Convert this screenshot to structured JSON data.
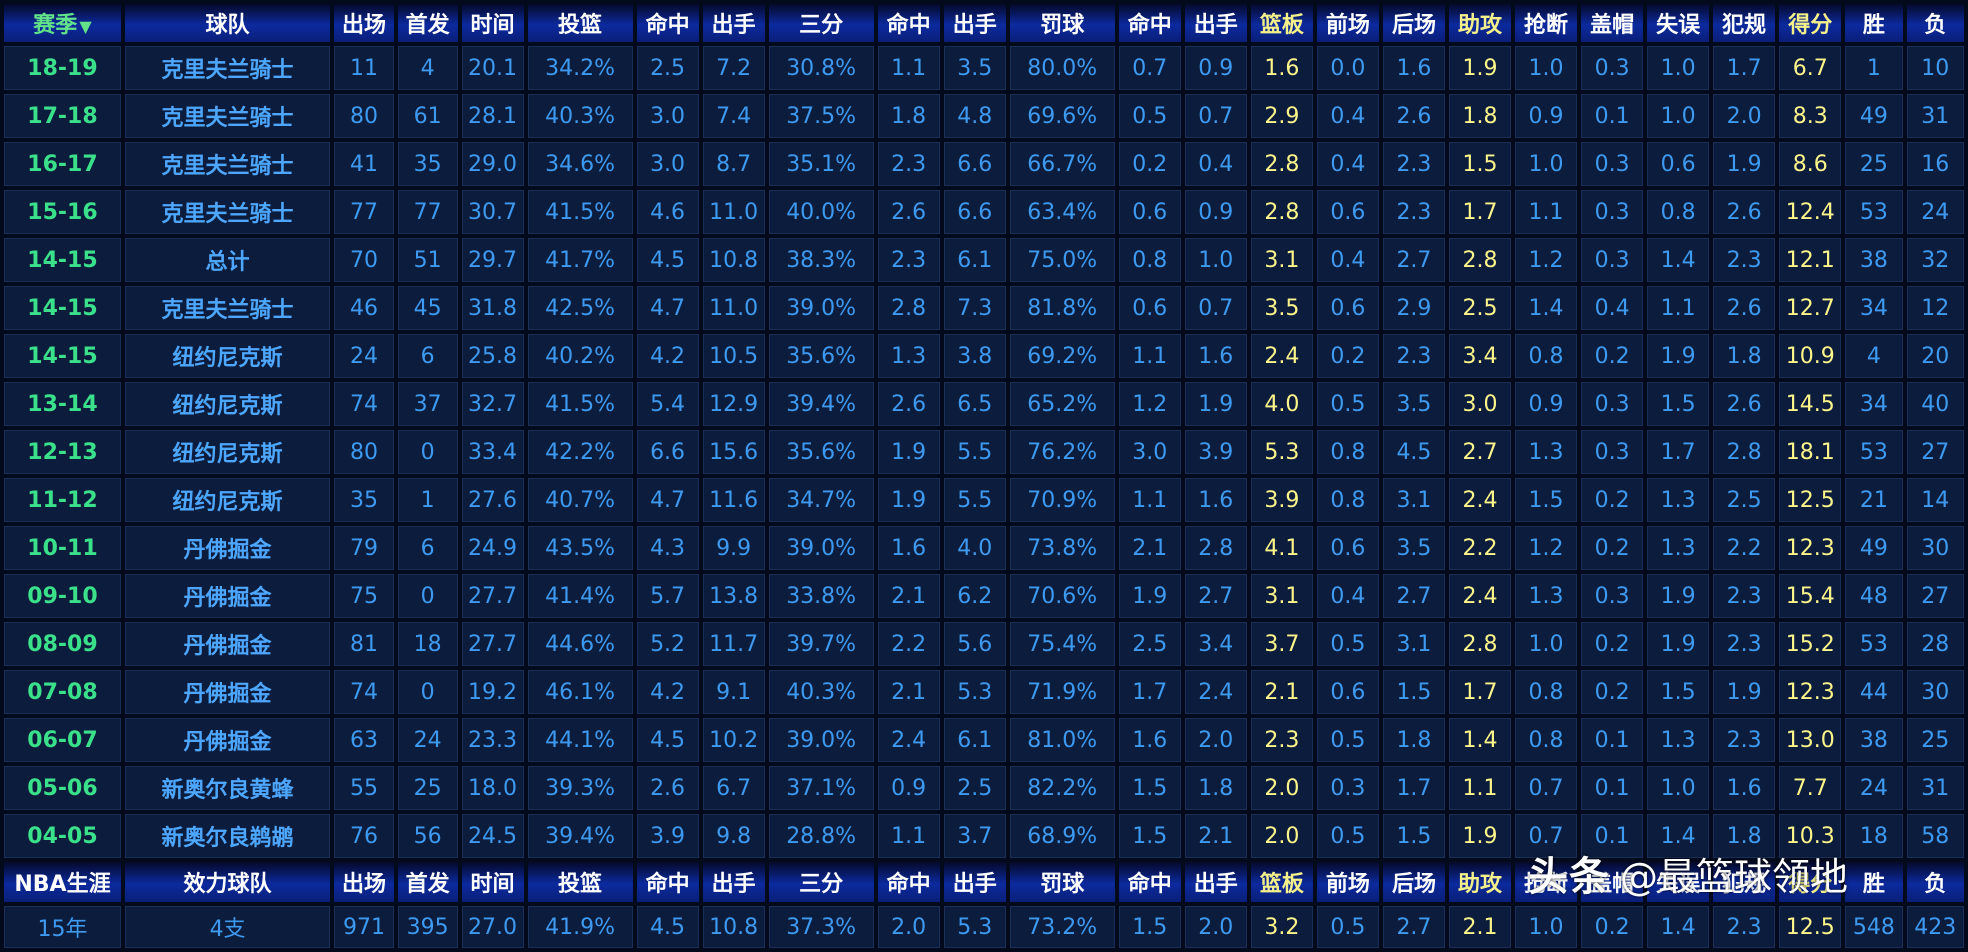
{
  "columns": [
    "赛季",
    "球队",
    "出场",
    "首发",
    "时间",
    "投篮",
    "命中",
    "出手",
    "三分",
    "命中",
    "出手",
    "罚球",
    "命中",
    "出手",
    "篮板",
    "前场",
    "后场",
    "助攻",
    "抢断",
    "盖帽",
    "失误",
    "犯规",
    "得分",
    "胜",
    "负"
  ],
  "sort_arrow": "▼",
  "rows": [
    [
      "18-19",
      "克里夫兰骑士",
      "11",
      "4",
      "20.1",
      "34.2%",
      "2.5",
      "7.2",
      "30.8%",
      "1.1",
      "3.5",
      "80.0%",
      "0.7",
      "0.9",
      "1.6",
      "0.0",
      "1.6",
      "1.9",
      "1.0",
      "0.3",
      "1.0",
      "1.7",
      "6.7",
      "1",
      "10"
    ],
    [
      "17-18",
      "克里夫兰骑士",
      "80",
      "61",
      "28.1",
      "40.3%",
      "3.0",
      "7.4",
      "37.5%",
      "1.8",
      "4.8",
      "69.6%",
      "0.5",
      "0.7",
      "2.9",
      "0.4",
      "2.6",
      "1.8",
      "0.9",
      "0.1",
      "1.0",
      "2.0",
      "8.3",
      "49",
      "31"
    ],
    [
      "16-17",
      "克里夫兰骑士",
      "41",
      "35",
      "29.0",
      "34.6%",
      "3.0",
      "8.7",
      "35.1%",
      "2.3",
      "6.6",
      "66.7%",
      "0.2",
      "0.4",
      "2.8",
      "0.4",
      "2.3",
      "1.5",
      "1.0",
      "0.3",
      "0.6",
      "1.9",
      "8.6",
      "25",
      "16"
    ],
    [
      "15-16",
      "克里夫兰骑士",
      "77",
      "77",
      "30.7",
      "41.5%",
      "4.6",
      "11.0",
      "40.0%",
      "2.6",
      "6.6",
      "63.4%",
      "0.6",
      "0.9",
      "2.8",
      "0.6",
      "2.3",
      "1.7",
      "1.1",
      "0.3",
      "0.8",
      "2.6",
      "12.4",
      "53",
      "24"
    ],
    [
      "14-15",
      "总计",
      "70",
      "51",
      "29.7",
      "41.7%",
      "4.5",
      "10.8",
      "38.3%",
      "2.3",
      "6.1",
      "75.0%",
      "0.8",
      "1.0",
      "3.1",
      "0.4",
      "2.7",
      "2.8",
      "1.2",
      "0.3",
      "1.4",
      "2.3",
      "12.1",
      "38",
      "32"
    ],
    [
      "14-15",
      "克里夫兰骑士",
      "46",
      "45",
      "31.8",
      "42.5%",
      "4.7",
      "11.0",
      "39.0%",
      "2.8",
      "7.3",
      "81.8%",
      "0.6",
      "0.7",
      "3.5",
      "0.6",
      "2.9",
      "2.5",
      "1.4",
      "0.4",
      "1.1",
      "2.6",
      "12.7",
      "34",
      "12"
    ],
    [
      "14-15",
      "纽约尼克斯",
      "24",
      "6",
      "25.8",
      "40.2%",
      "4.2",
      "10.5",
      "35.6%",
      "1.3",
      "3.8",
      "69.2%",
      "1.1",
      "1.6",
      "2.4",
      "0.2",
      "2.3",
      "3.4",
      "0.8",
      "0.2",
      "1.9",
      "1.8",
      "10.9",
      "4",
      "20"
    ],
    [
      "13-14",
      "纽约尼克斯",
      "74",
      "37",
      "32.7",
      "41.5%",
      "5.4",
      "12.9",
      "39.4%",
      "2.6",
      "6.5",
      "65.2%",
      "1.2",
      "1.9",
      "4.0",
      "0.5",
      "3.5",
      "3.0",
      "0.9",
      "0.3",
      "1.5",
      "2.6",
      "14.5",
      "34",
      "40"
    ],
    [
      "12-13",
      "纽约尼克斯",
      "80",
      "0",
      "33.4",
      "42.2%",
      "6.6",
      "15.6",
      "35.6%",
      "1.9",
      "5.5",
      "76.2%",
      "3.0",
      "3.9",
      "5.3",
      "0.8",
      "4.5",
      "2.7",
      "1.3",
      "0.3",
      "1.7",
      "2.8",
      "18.1",
      "53",
      "27"
    ],
    [
      "11-12",
      "纽约尼克斯",
      "35",
      "1",
      "27.6",
      "40.7%",
      "4.7",
      "11.6",
      "34.7%",
      "1.9",
      "5.5",
      "70.9%",
      "1.1",
      "1.6",
      "3.9",
      "0.8",
      "3.1",
      "2.4",
      "1.5",
      "0.2",
      "1.3",
      "2.5",
      "12.5",
      "21",
      "14"
    ],
    [
      "10-11",
      "丹佛掘金",
      "79",
      "6",
      "24.9",
      "43.5%",
      "4.3",
      "9.9",
      "39.0%",
      "1.6",
      "4.0",
      "73.8%",
      "2.1",
      "2.8",
      "4.1",
      "0.6",
      "3.5",
      "2.2",
      "1.2",
      "0.2",
      "1.3",
      "2.2",
      "12.3",
      "49",
      "30"
    ],
    [
      "09-10",
      "丹佛掘金",
      "75",
      "0",
      "27.7",
      "41.4%",
      "5.7",
      "13.8",
      "33.8%",
      "2.1",
      "6.2",
      "70.6%",
      "1.9",
      "2.7",
      "3.1",
      "0.4",
      "2.7",
      "2.4",
      "1.3",
      "0.3",
      "1.9",
      "2.3",
      "15.4",
      "48",
      "27"
    ],
    [
      "08-09",
      "丹佛掘金",
      "81",
      "18",
      "27.7",
      "44.6%",
      "5.2",
      "11.7",
      "39.7%",
      "2.2",
      "5.6",
      "75.4%",
      "2.5",
      "3.4",
      "3.7",
      "0.5",
      "3.1",
      "2.8",
      "1.0",
      "0.2",
      "1.9",
      "2.3",
      "15.2",
      "53",
      "28"
    ],
    [
      "07-08",
      "丹佛掘金",
      "74",
      "0",
      "19.2",
      "46.1%",
      "4.2",
      "9.1",
      "40.3%",
      "2.1",
      "5.3",
      "71.9%",
      "1.7",
      "2.4",
      "2.1",
      "0.6",
      "1.5",
      "1.7",
      "0.8",
      "0.2",
      "1.5",
      "1.9",
      "12.3",
      "44",
      "30"
    ],
    [
      "06-07",
      "丹佛掘金",
      "63",
      "24",
      "23.3",
      "44.1%",
      "4.5",
      "10.2",
      "39.0%",
      "2.4",
      "6.1",
      "81.0%",
      "1.6",
      "2.0",
      "2.3",
      "0.5",
      "1.8",
      "1.4",
      "0.8",
      "0.1",
      "1.3",
      "2.3",
      "13.0",
      "38",
      "25"
    ],
    [
      "05-06",
      "新奥尔良黄蜂",
      "55",
      "25",
      "18.0",
      "39.3%",
      "2.6",
      "6.7",
      "37.1%",
      "0.9",
      "2.5",
      "82.2%",
      "1.5",
      "1.8",
      "2.0",
      "0.3",
      "1.7",
      "1.1",
      "0.7",
      "0.1",
      "1.0",
      "1.6",
      "7.7",
      "24",
      "31"
    ],
    [
      "04-05",
      "新奥尔良鹈鹕",
      "76",
      "56",
      "24.5",
      "39.4%",
      "3.9",
      "9.8",
      "28.8%",
      "1.1",
      "3.7",
      "68.9%",
      "1.5",
      "2.1",
      "2.0",
      "0.5",
      "1.5",
      "1.9",
      "0.7",
      "0.1",
      "1.4",
      "1.8",
      "10.3",
      "18",
      "58"
    ]
  ],
  "career": {
    "columns": [
      "NBA生涯",
      "效力球队",
      "出场",
      "首发",
      "时间",
      "投篮",
      "命中",
      "出手",
      "三分",
      "命中",
      "出手",
      "罚球",
      "命中",
      "出手",
      "篮板",
      "前场",
      "后场",
      "助攻",
      "抢断",
      "盖帽",
      "失误",
      "犯规",
      "得分",
      "胜",
      "负"
    ],
    "values": [
      "15年",
      "4支",
      "971",
      "395",
      "27.0",
      "41.9%",
      "4.5",
      "10.8",
      "37.3%",
      "2.0",
      "5.3",
      "73.2%",
      "1.5",
      "2.0",
      "3.2",
      "0.5",
      "2.7",
      "2.1",
      "1.0",
      "0.2",
      "1.4",
      "2.3",
      "12.5",
      "548",
      "423"
    ]
  },
  "watermark": {
    "logo": "头条",
    "handle": "@最篮球领地"
  },
  "colors": {
    "background": "#020a1c",
    "cell": "#0c1c3c",
    "value_text": "#3d9af0",
    "season_text": "#3ae08a",
    "highlight_text": "#fbf58a",
    "header_gradient_mid": "#0c2a9e"
  }
}
